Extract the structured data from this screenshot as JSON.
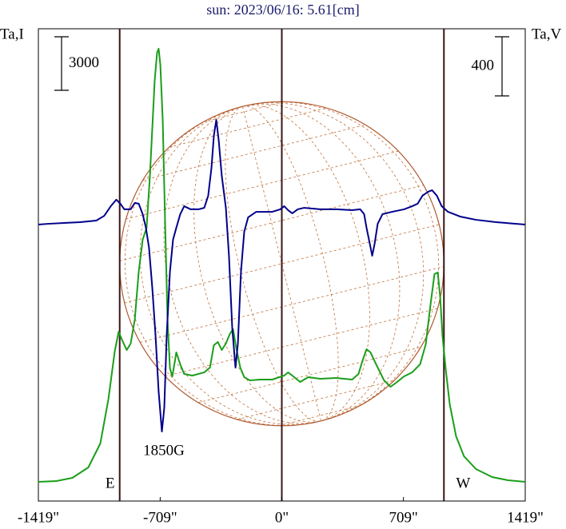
{
  "chart_data": {
    "type": "line",
    "title": "sun: 2023/06/16: 5.61[cm]",
    "y_label": "Ta,I",
    "y2_label": "Ta,V",
    "xlim": [
      -1419,
      1419
    ],
    "xticks": [
      {
        "value": -1419,
        "label": "-1419\""
      },
      {
        "value": -709,
        "label": "-709\""
      },
      {
        "value": 0,
        "label": "0\""
      },
      {
        "value": 709,
        "label": "709\""
      },
      {
        "value": 1419,
        "label": "1419\""
      }
    ],
    "ylim": [
      -1075,
      25400
    ],
    "y2lim": [
      -1870,
      1324
    ],
    "scale_bars": [
      {
        "value": 3000
      },
      {
        "value": 400,
        "axis": "y2"
      }
    ],
    "limb": {
      "radius": 945,
      "east": "E",
      "west": "W"
    },
    "annotation": "1850G",
    "series": [
      {
        "color": "#1a9e1a",
        "x": [
          -1419,
          -1314,
          -1221,
          -1128,
          -1058,
          -1011,
          -974,
          -951,
          -932,
          -904,
          -881,
          -857,
          -834,
          -811,
          -788,
          -769,
          -755,
          -741,
          -727,
          -718,
          -708,
          -694,
          -680,
          -666,
          -652,
          -638,
          -615,
          -592,
          -569,
          -522,
          -452,
          -419,
          -396,
          -373,
          -350,
          -326,
          -303,
          -284,
          -266,
          -242,
          -219,
          -186,
          -126,
          -56,
          14,
          37,
          61,
          107,
          154,
          224,
          317,
          410,
          447,
          471,
          494,
          517,
          550,
          596,
          634,
          666,
          713,
          760,
          806,
          839,
          867,
          890,
          909,
          923,
          937,
          955,
          979,
          1016,
          1062,
          1132,
          1226,
          1319,
          1419
        ],
        "values": [
          0,
          45,
          224,
          806,
          2150,
          4614,
          7302,
          8422,
          7974,
          7392,
          7750,
          9094,
          11782,
          13574,
          14246,
          17114,
          19802,
          22490,
          24058,
          24282,
          23386,
          20250,
          14426,
          9050,
          6362,
          5914,
          7258,
          6586,
          6048,
          5958,
          6138,
          6406,
          7661,
          7840,
          7392,
          7750,
          8288,
          8557,
          7526,
          6406,
          5870,
          5690,
          5734,
          5734,
          5958,
          6138,
          5958,
          5600,
          5870,
          5779,
          5824,
          5734,
          6048,
          6810,
          7437,
          7258,
          6586,
          5690,
          5331,
          5555,
          5914,
          6138,
          6586,
          7706,
          9946,
          11648,
          11738,
          10394,
          8154,
          6362,
          4346,
          2554,
          1434,
          717,
          269,
          90,
          0
        ]
      },
      {
        "color": "#00008b",
        "axis": "y2",
        "x": [
          -1419,
          -1361,
          -1268,
          -1174,
          -1081,
          -1035,
          -997,
          -965,
          -941,
          -918,
          -881,
          -857,
          -834,
          -811,
          -792,
          -774,
          -755,
          -736,
          -718,
          -699,
          -685,
          -671,
          -652,
          -634,
          -615,
          -592,
          -569,
          -531,
          -485,
          -452,
          -429,
          -410,
          -396,
          -382,
          -368,
          -350,
          -326,
          -308,
          -289,
          -270,
          -256,
          -238,
          -219,
          -196,
          -149,
          -56,
          -9,
          14,
          37,
          61,
          93,
          130,
          224,
          317,
          410,
          457,
          480,
          494,
          513,
          527,
          541,
          559,
          587,
          643,
          713,
          760,
          792,
          820,
          853,
          876,
          904,
          932,
          969,
          1039,
          1132,
          1249,
          1419
        ],
        "values": [
          0,
          5,
          11,
          16,
          27,
          59,
          124,
          168,
          141,
          103,
          103,
          146,
          141,
          70,
          -22,
          -157,
          -427,
          -751,
          -1129,
          -1400,
          -1238,
          -751,
          -319,
          -103,
          -22,
          70,
          124,
          103,
          103,
          113,
          195,
          384,
          600,
          708,
          573,
          330,
          113,
          -211,
          -697,
          -968,
          -805,
          -319,
          -49,
          49,
          86,
          86,
          103,
          124,
          97,
          76,
          103,
          113,
          103,
          103,
          97,
          103,
          70,
          -22,
          -130,
          -211,
          -130,
          5,
          70,
          86,
          103,
          124,
          141,
          195,
          222,
          232,
          195,
          124,
          86,
          54,
          32,
          16,
          0
        ]
      }
    ]
  }
}
